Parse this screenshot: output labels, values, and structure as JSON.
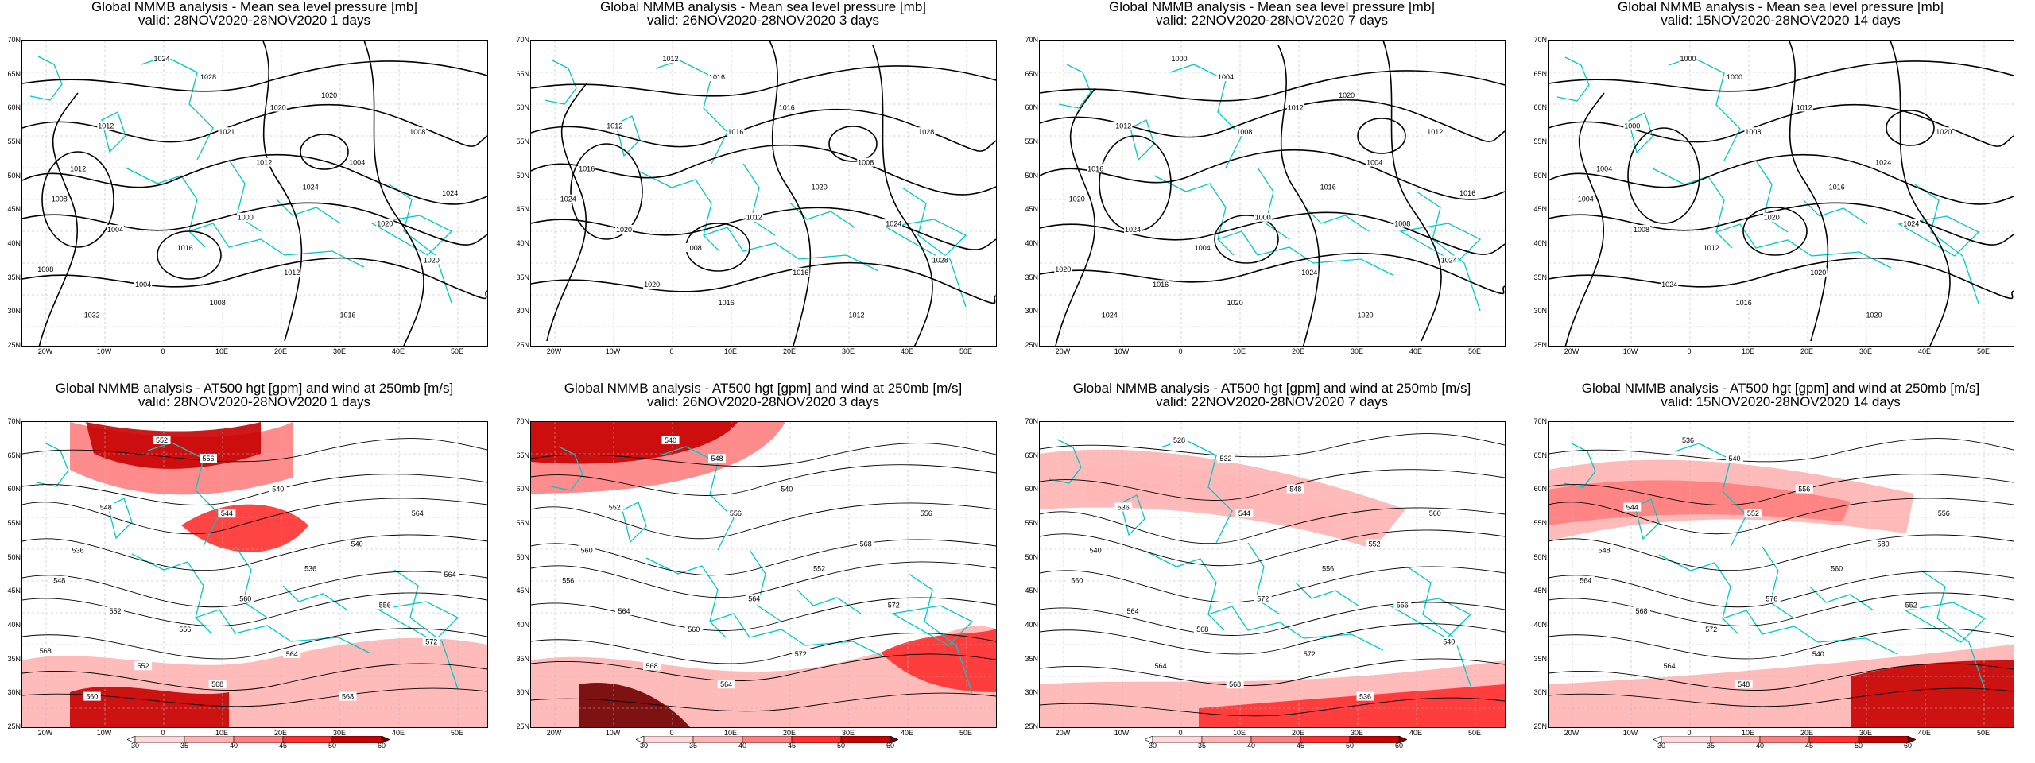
{
  "colors": {
    "coast": "#00c8c8",
    "contour": "#000000",
    "grid": "#b8b8b8"
  },
  "wind_colorbar": {
    "levels": [
      "30",
      "35",
      "40",
      "45",
      "50",
      "60"
    ],
    "colors": [
      "#ffffff",
      "#ffd9d9",
      "#ffb3b3",
      "#ff8080",
      "#ff3030",
      "#c80000",
      "#700000"
    ]
  },
  "axes": {
    "lat_labels": [
      "70N",
      "65N",
      "60N",
      "55N",
      "50N",
      "45N",
      "40N",
      "35N",
      "30N",
      "25N"
    ],
    "lon_labels": [
      "20W",
      "10W",
      "0",
      "10E",
      "20E",
      "30E",
      "40E",
      "50E"
    ]
  },
  "panels": [
    {
      "id": "p1",
      "title_line1": "Global NMMB analysis - Mean sea level pressure [mb]",
      "title_line2": "valid: 28NOV2020-28NOV2020   1 days",
      "labels": [
        "1024",
        "1028",
        "1012",
        "1012",
        "1021",
        "1020",
        "1024",
        "1008",
        "1004",
        "1016",
        "1000",
        "1004",
        "1020",
        "1008",
        "1004",
        "1008",
        "1012",
        "1016",
        "1020",
        "1032",
        "1024",
        "1008",
        "1020",
        "1012"
      ]
    },
    {
      "id": "p2",
      "title_line1": "Global NMMB analysis - Mean sea level pressure [mb]",
      "title_line2": "valid: 26NOV2020-28NOV2020   3 days",
      "labels": [
        "1012",
        "1016",
        "1012",
        "1016",
        "1016",
        "1016",
        "1020",
        "1024",
        "1020",
        "1008",
        "1012",
        "1008",
        "1024",
        "1028",
        "1020",
        "1016",
        "1016",
        "1012",
        "1028"
      ]
    },
    {
      "id": "p3",
      "title_line1": "Global NMMB analysis - Mean sea level pressure [mb]",
      "title_line2": "valid: 22NOV2020-28NOV2020   7 days",
      "labels": [
        "1000",
        "1004",
        "1012",
        "1016",
        "1008",
        "1012",
        "1016",
        "1020",
        "1024",
        "1004",
        "1000",
        "1004",
        "1008",
        "1012",
        "1016",
        "1020",
        "1024",
        "1020",
        "1024",
        "1024",
        "1016",
        "1020",
        "1020"
      ]
    },
    {
      "id": "p4",
      "title_line1": "Global NMMB analysis - Mean sea level pressure [mb]",
      "title_line2": "valid: 15NOV2020-28NOV2020   14 days",
      "labels": [
        "1000",
        "1000",
        "1000",
        "1004",
        "1008",
        "1012",
        "1016",
        "1004",
        "1008",
        "1012",
        "1020",
        "1024",
        "1024",
        "1020",
        "1024",
        "1016",
        "1020",
        "1020"
      ]
    },
    {
      "id": "p5",
      "title_line1": "Global NMMB analysis - AT500 hgt [gpm] and wind at 250mb [m/s]",
      "title_line2": "valid: 28NOV2020-28NOV2020   1 days",
      "labels": [
        "552",
        "556",
        "548",
        "536",
        "544",
        "540",
        "536",
        "548",
        "552",
        "556",
        "560",
        "540",
        "556",
        "564",
        "552",
        "568",
        "564",
        "568",
        "572",
        "560",
        "564",
        "568"
      ]
    },
    {
      "id": "p6",
      "title_line1": "Global NMMB analysis - AT500 hgt [gpm] and wind at 250mb [m/s]",
      "title_line2": "valid: 26NOV2020-28NOV2020   3 days",
      "labels": [
        "540",
        "548",
        "552",
        "560",
        "556",
        "540",
        "552",
        "556",
        "564",
        "560",
        "564",
        "568",
        "572",
        "556",
        "568",
        "564",
        "572"
      ]
    },
    {
      "id": "p7",
      "title_line1": "Global NMMB analysis - AT500 hgt [gpm] and wind at 250mb [m/s]",
      "title_line2": "valid: 22NOV2020-28NOV2020   7 days",
      "labels": [
        "528",
        "532",
        "536",
        "540",
        "544",
        "548",
        "556",
        "560",
        "564",
        "568",
        "572",
        "552",
        "556",
        "560",
        "564",
        "568",
        "572",
        "536",
        "540"
      ]
    },
    {
      "id": "p8",
      "title_line1": "Global NMMB analysis - AT500 hgt [gpm] and wind at 250mb [m/s]",
      "title_line2": "valid: 15NOV2020-28NOV2020   14 days",
      "labels": [
        "536",
        "540",
        "544",
        "548",
        "552",
        "556",
        "560",
        "564",
        "568",
        "572",
        "576",
        "580",
        "552",
        "556",
        "564",
        "548",
        "540"
      ]
    }
  ]
}
